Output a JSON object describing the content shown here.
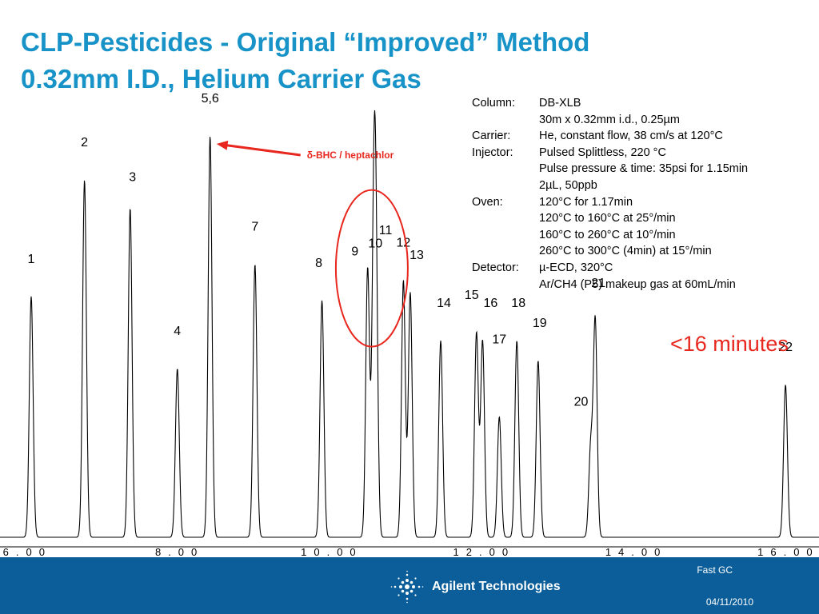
{
  "title": {
    "line1": "CLP-Pesticides - Original “Improved” Method",
    "line2": "0.32mm I.D., Helium Carrier Gas"
  },
  "method": [
    {
      "label": "Column:",
      "value": "DB-XLB"
    },
    {
      "label": "",
      "value": "30m x 0.32mm i.d., 0.25µm"
    },
    {
      "label": "Carrier:",
      "value": "He, constant flow, 38 cm/s at 120°C"
    },
    {
      "label": "Injector:",
      "value": "Pulsed Splittless, 220 °C"
    },
    {
      "label": "",
      "value": "Pulse pressure & time: 35psi for 1.15min"
    },
    {
      "label": "",
      "value": "2µL, 50ppb"
    },
    {
      "label": "Oven:",
      "value": "120°C for 1.17min"
    },
    {
      "label": "",
      "value": "120°C to 160°C at 25°/min"
    },
    {
      "label": "",
      "value": "160°C to 260°C at 10°/min"
    },
    {
      "label": "",
      "value": "260°C to 300°C (4min) at 15°/min"
    },
    {
      "label": "Detector:",
      "value": " µ-ECD, 320°C"
    },
    {
      "label": "",
      "value": "Ar/CH4 (P5) makeup gas at 60mL/min"
    }
  ],
  "note": "<16 minutes",
  "chart_data": {
    "type": "line",
    "title": "",
    "xlabel": "",
    "ylabel": "",
    "xlim": [
      5.64,
      16.4
    ],
    "ylim": [
      0,
      100
    ],
    "xticks": [
      6.0,
      8.0,
      10.0,
      12.0,
      14.0,
      16.0
    ],
    "xtick_labels": [
      "6.00",
      "8.00",
      "10.00",
      "12.00",
      "14.00",
      "16.00"
    ],
    "peaks": [
      {
        "label": "1",
        "x": 6.05,
        "height": 60
      },
      {
        "label": "2",
        "x": 6.75,
        "height": 89
      },
      {
        "label": "3",
        "x": 7.35,
        "height": 82
      },
      {
        "label": "4",
        "x": 7.97,
        "height": 42
      },
      {
        "label": "5,6",
        "x": 8.4,
        "height": 100
      },
      {
        "label": "7",
        "x": 8.99,
        "height": 68
      },
      {
        "label": "8",
        "x": 9.87,
        "height": 59
      },
      {
        "label": "9",
        "x": 10.47,
        "height": 67
      },
      {
        "label": "10",
        "x": 10.55,
        "height": 69
      },
      {
        "label": "11",
        "x": 10.58,
        "height": 58
      },
      {
        "label": "12",
        "x": 10.94,
        "height": 64
      },
      {
        "label": "13",
        "x": 11.03,
        "height": 61
      },
      {
        "label": "14",
        "x": 11.43,
        "height": 49
      },
      {
        "label": "15",
        "x": 11.9,
        "height": 51
      },
      {
        "label": "16",
        "x": 11.98,
        "height": 49
      },
      {
        "label": "17",
        "x": 12.2,
        "height": 30
      },
      {
        "label": "18",
        "x": 12.43,
        "height": 49
      },
      {
        "label": "19",
        "x": 12.71,
        "height": 44
      },
      {
        "label": "20",
        "x": 13.4,
        "height": 22
      },
      {
        "label": "21",
        "x": 13.46,
        "height": 54
      },
      {
        "label": "22",
        "x": 15.96,
        "height": 38
      }
    ],
    "annotation": {
      "text": "δ-BHC / heptachlor",
      "target_peak": "5,6"
    },
    "highlight": {
      "shape": "ellipse",
      "peaks": [
        "9",
        "10",
        "11"
      ]
    }
  },
  "footer": {
    "logo_text": "Agilent Technologies",
    "title": "Fast GC",
    "date": "04/11/2010"
  },
  "colors": {
    "title": "#1793c8",
    "accent_red": "#e8271e",
    "footer_bg": "#0b5e99",
    "trace": "#000000"
  }
}
